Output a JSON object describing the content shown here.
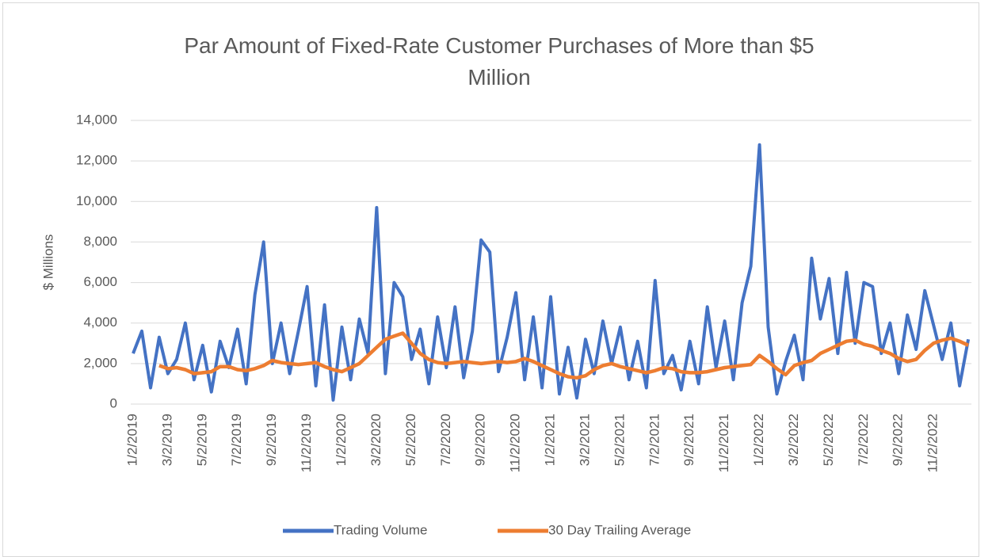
{
  "chart_data": {
    "type": "line",
    "title": "Par Amount of Fixed-Rate Customer Purchases of More than $5 Million",
    "y_label": "$ Millions",
    "categories": [
      "1/2/2019",
      null,
      null,
      null,
      "3/2/2019",
      null,
      null,
      null,
      "5/2/2019",
      null,
      null,
      null,
      "7/2/2019",
      null,
      null,
      null,
      "9/2/2019",
      null,
      null,
      null,
      "11/2/2019",
      null,
      null,
      null,
      "1/2/2020",
      null,
      null,
      null,
      "3/2/2020",
      null,
      null,
      null,
      "5/2/2020",
      null,
      null,
      null,
      "7/2/2020",
      null,
      null,
      null,
      "9/2/2020",
      null,
      null,
      null,
      "11/2/2020",
      null,
      null,
      null,
      "1/2/2021",
      null,
      null,
      null,
      "3/2/2021",
      null,
      null,
      null,
      "5/2/2021",
      null,
      null,
      null,
      "7/2/2021",
      null,
      null,
      null,
      "9/2/2021",
      null,
      null,
      null,
      "11/2/2021",
      null,
      null,
      null,
      "1/2/2022",
      null,
      null,
      null,
      "3/2/2022",
      null,
      null,
      null,
      "5/2/2022",
      null,
      null,
      null,
      "7/2/2022",
      null,
      null,
      null,
      "9/2/2022",
      null,
      null,
      null,
      "11/2/2022",
      null,
      null,
      null,
      null
    ],
    "series": [
      {
        "name": "Trading Volume",
        "color": "#4472c4",
        "values": [
          2500,
          3600,
          800,
          3300,
          1500,
          2200,
          4000,
          1200,
          2900,
          600,
          3100,
          1800,
          3700,
          1000,
          5400,
          8000,
          2000,
          4000,
          1500,
          3600,
          5800,
          900,
          4900,
          200,
          3800,
          1200,
          4200,
          2500,
          9700,
          1500,
          6000,
          5300,
          2200,
          3700,
          1000,
          4300,
          1800,
          4800,
          1300,
          3600,
          8100,
          7500,
          1600,
          3300,
          5500,
          1200,
          4300,
          800,
          5300,
          500,
          2800,
          300,
          3200,
          1500,
          4100,
          2000,
          3800,
          1200,
          3100,
          800,
          6100,
          1500,
          2400,
          700,
          3100,
          1000,
          4800,
          1800,
          4100,
          1200,
          5000,
          6800,
          12800,
          3800,
          500,
          2100,
          3400,
          1200,
          7200,
          4200,
          6200,
          2500,
          6500,
          3000,
          6000,
          5800,
          2500,
          4000,
          1500,
          4400,
          2700,
          5600,
          3900,
          2200,
          4000,
          900,
          3200
        ]
      },
      {
        "name": "30 Day Trailing Average",
        "color": "#ed7d31",
        "values": [
          null,
          null,
          null,
          1900,
          1750,
          1800,
          1700,
          1500,
          1550,
          1600,
          1850,
          1850,
          1700,
          1650,
          1750,
          1900,
          2150,
          2050,
          2000,
          1950,
          2000,
          2050,
          1850,
          1700,
          1600,
          1800,
          2000,
          2400,
          2800,
          3200,
          3350,
          3500,
          3000,
          2500,
          2200,
          2050,
          2000,
          2050,
          2100,
          2050,
          2000,
          2050,
          2100,
          2050,
          2100,
          2250,
          2100,
          1900,
          1700,
          1500,
          1350,
          1300,
          1400,
          1700,
          1900,
          2000,
          1850,
          1750,
          1650,
          1550,
          1650,
          1800,
          1750,
          1600,
          1550,
          1550,
          1600,
          1700,
          1800,
          1850,
          1900,
          1950,
          2400,
          2100,
          1750,
          1450,
          1900,
          2050,
          2150,
          2500,
          2700,
          2900,
          3100,
          3150,
          2950,
          2850,
          2650,
          2500,
          2250,
          2100,
          2200,
          2650,
          3000,
          3150,
          3250,
          3100,
          2900
        ]
      }
    ],
    "ylim": [
      0,
      14000
    ],
    "yticks": [
      0,
      {
        "value": 2000,
        "label": "2,000"
      },
      {
        "value": 4000,
        "label": "4,000"
      },
      {
        "value": 6000,
        "label": "6,000"
      },
      {
        "value": 8000,
        "label": "8,000"
      },
      {
        "value": 10000,
        "label": "10,000"
      },
      {
        "value": 12000,
        "label": "12,000"
      },
      {
        "value": 14000,
        "label": "14,000"
      }
    ],
    "grid": true,
    "legend": "bottom"
  }
}
